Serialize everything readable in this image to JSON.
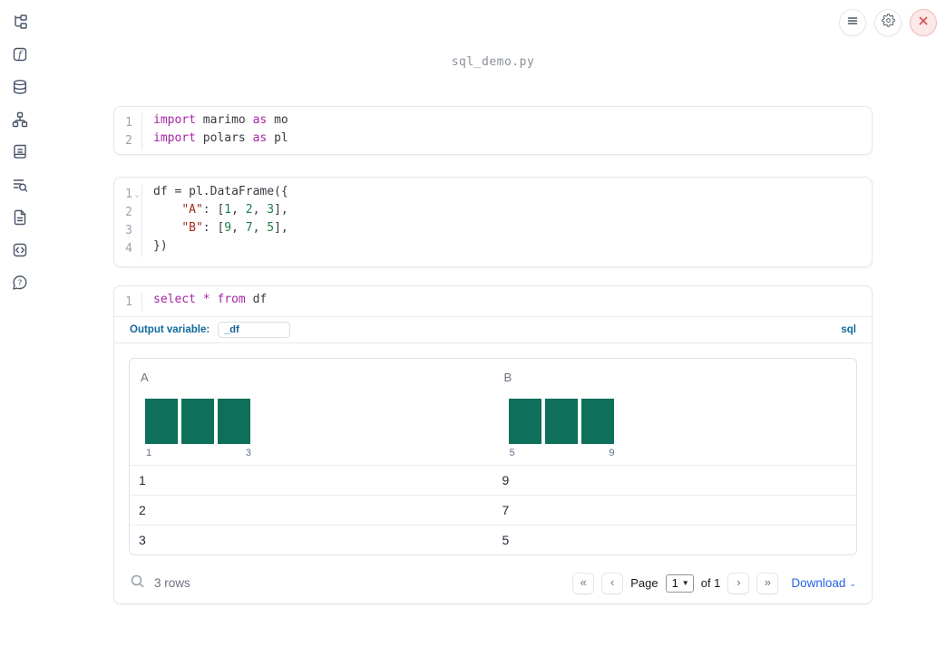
{
  "window": {
    "title": "sql_demo.py"
  },
  "topbar": {
    "buttons": [
      {
        "name": "menu",
        "icon": "hamburger-icon"
      },
      {
        "name": "settings",
        "icon": "gear-icon"
      },
      {
        "name": "shutdown",
        "icon": "close-icon"
      }
    ]
  },
  "sidebar": {
    "items": [
      "file-explorer",
      "variables",
      "data-sources",
      "dependency-graph",
      "logs",
      "table-of-contents",
      "documentation",
      "snippets",
      "help"
    ]
  },
  "cells": [
    {
      "type": "python",
      "lines": [
        {
          "n": "1",
          "tokens": [
            [
              "import",
              "kw"
            ],
            [
              " marimo ",
              "pl"
            ],
            [
              "as",
              "kw"
            ],
            [
              " mo",
              "pl"
            ]
          ]
        },
        {
          "n": "2",
          "tokens": [
            [
              "import",
              "kw"
            ],
            [
              " polars ",
              "pl"
            ],
            [
              "as",
              "kw"
            ],
            [
              " pl",
              "pl"
            ]
          ]
        }
      ]
    },
    {
      "type": "python",
      "lines": [
        {
          "n": "1",
          "fold": true,
          "tokens": [
            [
              "df = pl.DataFrame({",
              "pl"
            ]
          ]
        },
        {
          "n": "2",
          "tokens": [
            [
              "    ",
              "pl"
            ],
            [
              "\"A\"",
              "str"
            ],
            [
              ": [",
              "pl"
            ],
            [
              "1",
              "num"
            ],
            [
              ", ",
              "pl"
            ],
            [
              "2",
              "num"
            ],
            [
              ", ",
              "pl"
            ],
            [
              "3",
              "num"
            ],
            [
              "],",
              "pl"
            ]
          ]
        },
        {
          "n": "3",
          "tokens": [
            [
              "    ",
              "pl"
            ],
            [
              "\"B\"",
              "str"
            ],
            [
              ": [",
              "pl"
            ],
            [
              "9",
              "num"
            ],
            [
              ", ",
              "pl"
            ],
            [
              "7",
              "num"
            ],
            [
              ", ",
              "pl"
            ],
            [
              "5",
              "num"
            ],
            [
              "],",
              "pl"
            ]
          ]
        },
        {
          "n": "4",
          "tokens": [
            [
              "})",
              "pl"
            ]
          ]
        }
      ]
    },
    {
      "type": "sql",
      "lines": [
        {
          "n": "1",
          "tokens": [
            [
              "select",
              "kw"
            ],
            [
              " ",
              "pl"
            ],
            [
              "*",
              "kw"
            ],
            [
              " ",
              "pl"
            ],
            [
              "from",
              "kw"
            ],
            [
              " df",
              "pl"
            ]
          ]
        }
      ]
    }
  ],
  "sql_cell": {
    "output_variable_label": "Output variable:",
    "output_variable_value": "_df",
    "language_badge": "sql"
  },
  "table": {
    "columns": [
      {
        "name": "A",
        "histogram": {
          "bars": [
            1,
            1,
            1
          ],
          "min_label": "1",
          "max_label": "3"
        }
      },
      {
        "name": "B",
        "histogram": {
          "bars": [
            1,
            1,
            1
          ],
          "min_label": "5",
          "max_label": "9"
        }
      }
    ],
    "rows": [
      [
        "1",
        "9"
      ],
      [
        "2",
        "7"
      ],
      [
        "3",
        "5"
      ]
    ],
    "footer": {
      "row_count": "3 rows",
      "first_page_glyph": "«",
      "prev_page_glyph": "‹",
      "page_label": "Page",
      "page_value": "1",
      "of_label": "of 1",
      "next_page_glyph": "›",
      "last_page_glyph": "»",
      "download_label": "Download"
    }
  },
  "colors": {
    "keyword": "#a626a4",
    "string": "#a6271c",
    "number": "#1c7e45",
    "plain_code": "#383a42",
    "accent_blue": "#0e6a9e",
    "download_blue": "#2563eb",
    "histogram_bar": "#0e6f5a"
  }
}
